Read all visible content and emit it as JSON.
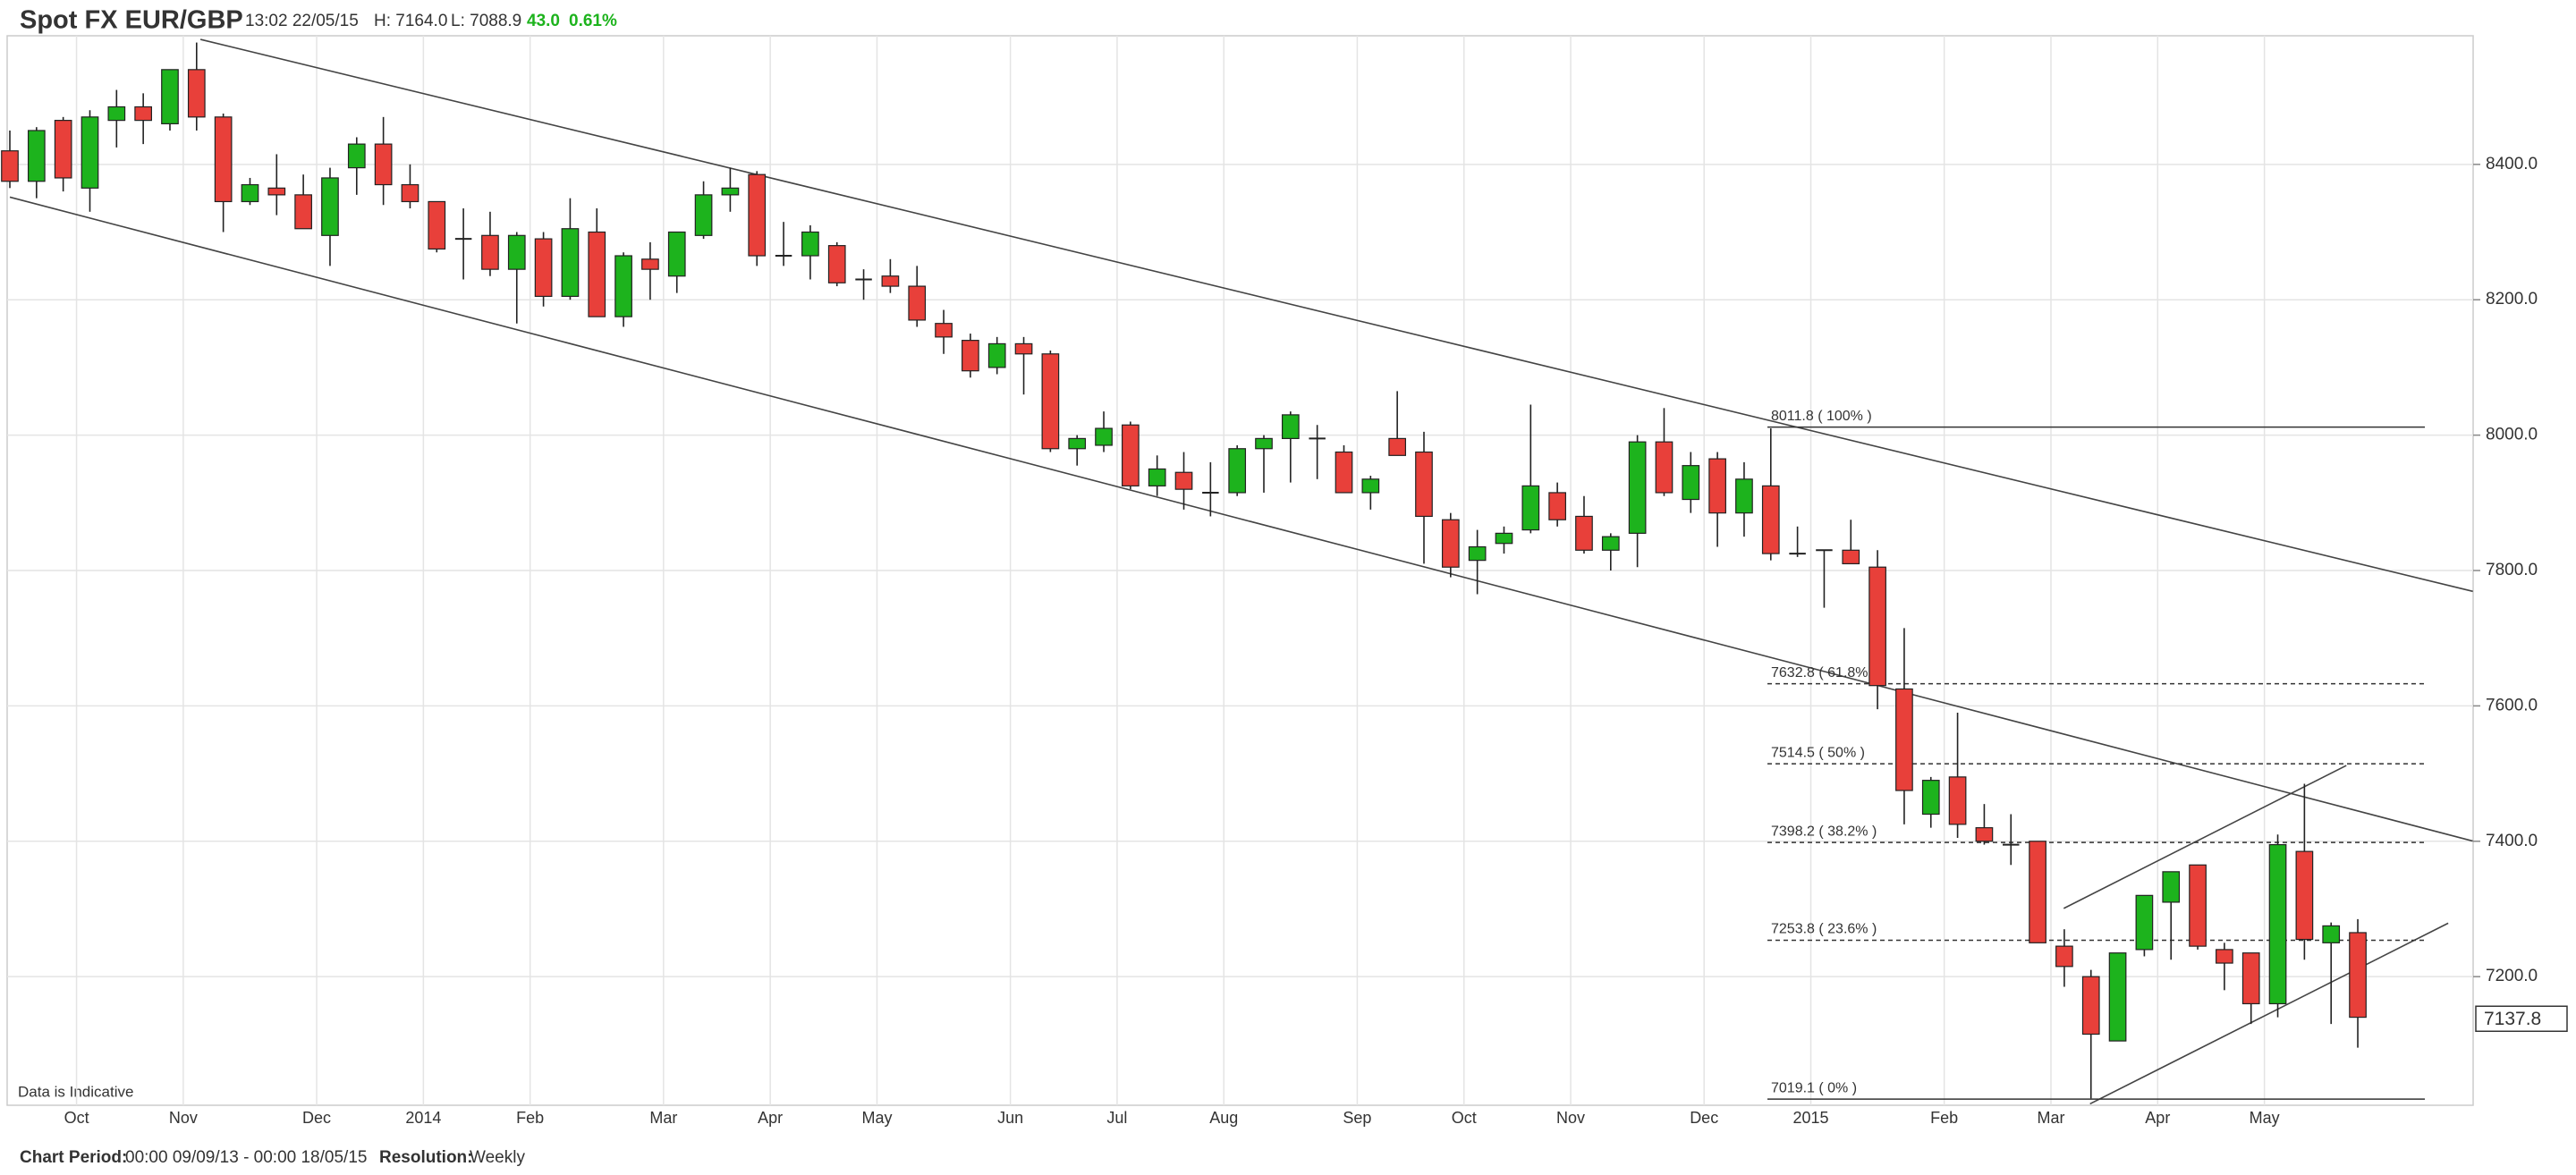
{
  "chart_data": {
    "type": "candlestick",
    "title": "Spot FX EUR/GBP",
    "timestamp": "13:02 22/05/15",
    "high_label": "H: 7164.0",
    "low_label": "L: 7088.9",
    "change": "43.0",
    "change_pct": "0.61%",
    "note": "Data is Indicative",
    "period_label": "Chart Period:",
    "period": "00:00 09/09/13 - 00:00 18/05/15",
    "resolution_label": "Resolution:",
    "resolution": "Weekly",
    "up_color": "#1db31d",
    "down_color": "#e8403a",
    "grid": true,
    "categories": [
      null,
      null,
      null,
      "Oct",
      null,
      null,
      null,
      "Nov",
      null,
      null,
      null,
      null,
      "Dec",
      null,
      null,
      null,
      "2014",
      null,
      null,
      null,
      "Feb",
      null,
      null,
      null,
      null,
      "Mar",
      null,
      null,
      null,
      "Apr",
      null,
      null,
      null,
      "May",
      null,
      null,
      null,
      null,
      "Jun",
      null,
      null,
      null,
      "Jul",
      null,
      null,
      null,
      "Aug",
      null,
      null,
      null,
      null,
      "Sep",
      null,
      null,
      null,
      "Oct",
      null,
      null,
      null,
      "Nov",
      null,
      null,
      null,
      null,
      "Dec",
      null,
      null,
      null,
      "2015",
      null,
      null,
      null,
      null,
      "Feb",
      null,
      null,
      null,
      "Mar",
      null,
      null,
      null,
      "Apr",
      null,
      null,
      null,
      "May",
      null,
      null,
      null
    ],
    "open": [
      8420,
      8375,
      8465,
      8365,
      8465,
      8485,
      8460,
      8540,
      8470,
      8345,
      8365,
      8355,
      8295,
      8395,
      8430,
      8370,
      8345,
      8290,
      8295,
      8245,
      8290,
      8205,
      8300,
      8175,
      8260,
      8235,
      8295,
      8355,
      8385,
      8265,
      8265,
      8280,
      8230,
      8235,
      8220,
      8165,
      8140,
      8100,
      8135,
      8120,
      7980,
      7985,
      8015,
      7925,
      7945,
      7915,
      7915,
      7980,
      7995,
      7995,
      7975,
      7915,
      7995,
      7975,
      7875,
      7815,
      7840,
      7860,
      7915,
      7880,
      7830,
      7855,
      7990,
      7905,
      7965,
      7885,
      7925,
      7825,
      7830,
      7830,
      7805,
      7625,
      7440,
      7495,
      7420,
      7395,
      7400,
      7245,
      7200,
      7105,
      7240,
      7310,
      7365,
      7240,
      7235,
      7160,
      7385,
      7250,
      7265
    ],
    "high": [
      8450,
      8455,
      8470,
      8480,
      8510,
      8505,
      8540,
      8580,
      8475,
      8380,
      8415,
      8385,
      8395,
      8440,
      8470,
      8400,
      8345,
      8335,
      8330,
      8300,
      8300,
      8350,
      8335,
      8270,
      8285,
      8300,
      8375,
      8395,
      8390,
      8315,
      8310,
      8285,
      8245,
      8260,
      8250,
      8185,
      8150,
      8145,
      8145,
      8125,
      8000,
      8035,
      8020,
      7970,
      7975,
      7960,
      7985,
      8000,
      8035,
      8015,
      7985,
      7940,
      8065,
      8005,
      7885,
      7860,
      7865,
      8045,
      7930,
      7910,
      7855,
      8000,
      8040,
      7975,
      7975,
      7960,
      8010,
      7865,
      7830,
      7875,
      7830,
      7715,
      7495,
      7590,
      7455,
      7440,
      7400,
      7270,
      7210,
      7235,
      7315,
      7355,
      7365,
      7250,
      7235,
      7410,
      7485,
      7280,
      7285
    ],
    "low": [
      8365,
      8350,
      8360,
      8330,
      8425,
      8430,
      8450,
      8450,
      8300,
      8340,
      8325,
      8305,
      8250,
      8355,
      8340,
      8335,
      8270,
      8230,
      8235,
      8165,
      8190,
      8200,
      8175,
      8160,
      8200,
      8210,
      8290,
      8330,
      8250,
      8250,
      8230,
      8220,
      8200,
      8210,
      8160,
      8120,
      8085,
      8090,
      8060,
      7975,
      7955,
      7975,
      7920,
      7910,
      7890,
      7880,
      7910,
      7915,
      7930,
      7935,
      7915,
      7890,
      7970,
      7810,
      7790,
      7765,
      7825,
      7855,
      7865,
      7825,
      7800,
      7805,
      7910,
      7885,
      7835,
      7850,
      7815,
      7820,
      7745,
      7810,
      7595,
      7425,
      7420,
      7405,
      7395,
      7365,
      7250,
      7185,
      7020,
      7105,
      7230,
      7225,
      7240,
      7180,
      7130,
      7140,
      7225,
      7130,
      7095
    ],
    "close": [
      8375,
      8450,
      8380,
      8470,
      8485,
      8465,
      8540,
      8470,
      8345,
      8370,
      8355,
      8305,
      8380,
      8430,
      8370,
      8345,
      8275,
      8290,
      8245,
      8295,
      8205,
      8305,
      8175,
      8265,
      8245,
      8300,
      8355,
      8365,
      8265,
      8265,
      8300,
      8225,
      8230,
      8220,
      8170,
      8145,
      8095,
      8135,
      8120,
      7980,
      7995,
      8010,
      7925,
      7950,
      7920,
      7915,
      7980,
      7995,
      8030,
      7995,
      7915,
      7935,
      7970,
      7880,
      7805,
      7835,
      7855,
      7925,
      7875,
      7830,
      7850,
      7990,
      7915,
      7955,
      7885,
      7935,
      7825,
      7825,
      7830,
      7810,
      7630,
      7475,
      7490,
      7425,
      7400,
      7395,
      7250,
      7215,
      7115,
      7235,
      7320,
      7355,
      7245,
      7220,
      7160,
      7395,
      7255,
      7275,
      7140
    ],
    "ylim": [
      7010,
      8590
    ],
    "yticks": [
      {
        "value": 7200,
        "label": "7200.0"
      },
      {
        "value": 7400,
        "label": "7400.0"
      },
      {
        "value": 7600,
        "label": "7600.0"
      },
      {
        "value": 7800,
        "label": "7800.0"
      },
      {
        "value": 8000,
        "label": "8000.0"
      },
      {
        "value": 8200,
        "label": "8200.0"
      },
      {
        "value": 8400,
        "label": "8400.0"
      }
    ],
    "last_price": 7137.8,
    "fibonacci": [
      {
        "value": 8011.8,
        "label": "8011.8 ( 100% )"
      },
      {
        "value": 7632.8,
        "label": "7632.8 ( 61.8% )"
      },
      {
        "value": 7514.5,
        "label": "7514.5 ( 50% )"
      },
      {
        "value": 7398.2,
        "label": "7398.2 ( 38.2% )"
      },
      {
        "value": 7253.8,
        "label": "7253.8 ( 23.6% )"
      },
      {
        "value": 7019.1,
        "label": "7019.1 ( 0% )"
      }
    ]
  }
}
